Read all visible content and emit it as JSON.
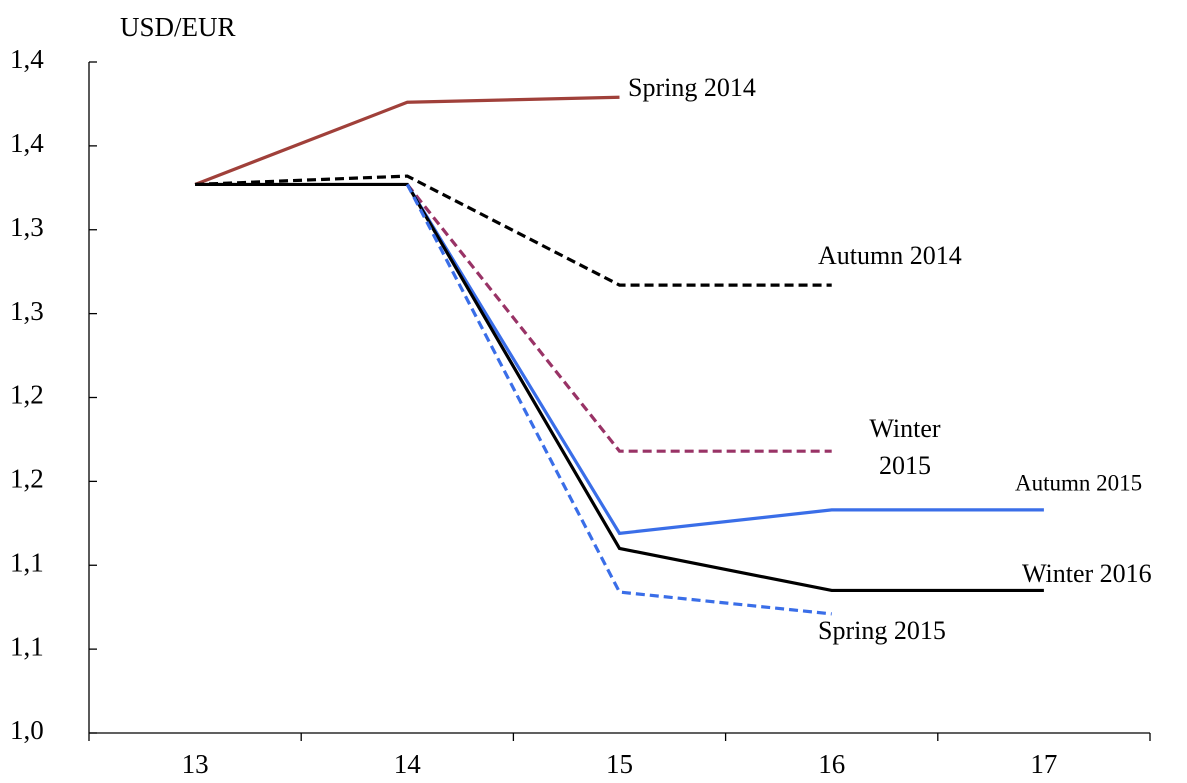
{
  "chart_data": {
    "type": "line",
    "title": "USD/EUR",
    "categories": [
      "13",
      "14",
      "15",
      "16",
      "17"
    ],
    "ylim": [
      1.0,
      1.4
    ],
    "yticks": [
      {
        "value": 1.0,
        "label": "1,0"
      },
      {
        "value": 1.05,
        "label": "1,1"
      },
      {
        "value": 1.1,
        "label": "1,1"
      },
      {
        "value": 1.15,
        "label": "1,2"
      },
      {
        "value": 1.2,
        "label": "1,2"
      },
      {
        "value": 1.25,
        "label": "1,3"
      },
      {
        "value": 1.3,
        "label": "1,3"
      },
      {
        "value": 1.35,
        "label": "1,4"
      },
      {
        "value": 1.4,
        "label": "1,4"
      }
    ],
    "series": [
      {
        "name": "Spring 2014",
        "color": "#a0403a",
        "dashed": false,
        "values": [
          1.327,
          1.376,
          1.379,
          null,
          null
        ]
      },
      {
        "name": "Autumn 2014",
        "color": "#000000",
        "dashed": true,
        "values": [
          1.327,
          1.332,
          1.267,
          1.267,
          null
        ]
      },
      {
        "name": "Winter 2015",
        "color": "#993366",
        "dashed": true,
        "values": [
          null,
          1.327,
          1.168,
          1.168,
          null
        ]
      },
      {
        "name": "Autumn 2015",
        "color": "#3a6ee8",
        "dashed": false,
        "values": [
          null,
          1.327,
          1.119,
          1.133,
          1.133
        ]
      },
      {
        "name": "Winter 2016",
        "color": "#000000",
        "dashed": false,
        "values": [
          1.327,
          1.327,
          1.11,
          1.085,
          1.085
        ]
      },
      {
        "name": "Spring 2015",
        "color": "#3a6ee8",
        "dashed": true,
        "values": [
          null,
          1.327,
          1.084,
          1.071,
          null
        ]
      }
    ]
  }
}
